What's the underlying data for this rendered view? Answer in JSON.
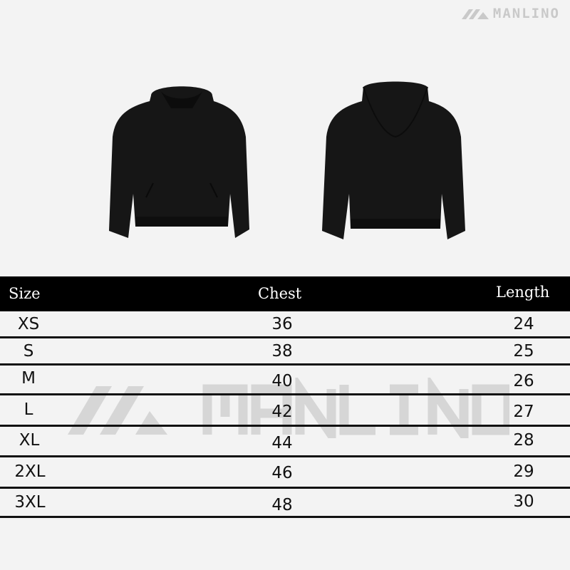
{
  "brand": {
    "name": "MANLINO",
    "color": "#c9c9c9"
  },
  "watermark": {
    "text": "MANLINO",
    "color": "#d6d6d6"
  },
  "garment": {
    "views": [
      "front",
      "back"
    ],
    "color": "#161616"
  },
  "table": {
    "headers": {
      "size": "Size",
      "chest": "Chest",
      "length": "Length"
    },
    "rows": [
      {
        "size": "XS",
        "chest": "36",
        "length": "24"
      },
      {
        "size": "S",
        "chest": "38",
        "length": "25"
      },
      {
        "size": "M",
        "chest": "40",
        "length": "26"
      },
      {
        "size": "L",
        "chest": "42",
        "length": "27"
      },
      {
        "size": "XL",
        "chest": "44",
        "length": "28"
      },
      {
        "size": "2XL",
        "chest": "46",
        "length": "29"
      },
      {
        "size": "3XL",
        "chest": "48",
        "length": "30"
      }
    ]
  }
}
